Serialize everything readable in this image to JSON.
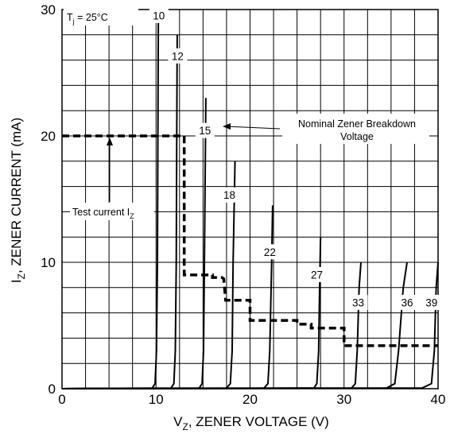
{
  "chart_data": {
    "type": "line",
    "title": "",
    "condition": {
      "prefix": "T",
      "sub": "j",
      "suffix": " = 25°C"
    },
    "xlabel": {
      "prefix": "V",
      "sub": "Z",
      "suffix": ", ZENER VOLTAGE (V)"
    },
    "ylabel": {
      "prefix": "I",
      "sub": "Z",
      "suffix": ", ZENER CURRENT (mA)"
    },
    "xlim": [
      0,
      40
    ],
    "ylim": [
      0,
      30
    ],
    "x_ticks": [
      0,
      10,
      20,
      30,
      40
    ],
    "y_ticks": [
      0,
      10,
      20,
      30
    ],
    "grid": true,
    "x_minor_step": 2.5,
    "y_minor_step": 2,
    "series": [
      {
        "name": "10",
        "label_at": [
          10.3,
          29.5
        ],
        "points": [
          [
            0,
            0
          ],
          [
            9.6,
            0.05
          ],
          [
            9.9,
            0.4
          ],
          [
            10.05,
            3
          ],
          [
            10.15,
            10
          ],
          [
            10.2,
            20
          ],
          [
            10.25,
            30
          ]
        ]
      },
      {
        "name": "12",
        "label_at": [
          12.3,
          26.3
        ],
        "points": [
          [
            0,
            0
          ],
          [
            11.6,
            0.05
          ],
          [
            11.9,
            0.4
          ],
          [
            12.05,
            3
          ],
          [
            12.15,
            10
          ],
          [
            12.2,
            20
          ],
          [
            12.25,
            28
          ]
        ]
      },
      {
        "name": "15",
        "label_at": [
          15.2,
          20.4
        ],
        "points": [
          [
            0,
            0
          ],
          [
            14.6,
            0.05
          ],
          [
            14.9,
            0.4
          ],
          [
            15.05,
            3
          ],
          [
            15.15,
            10
          ],
          [
            15.3,
            23
          ]
        ]
      },
      {
        "name": "18",
        "label_at": [
          17.8,
          15.3
        ],
        "points": [
          [
            0,
            0
          ],
          [
            17.5,
            0.05
          ],
          [
            17.9,
            0.4
          ],
          [
            18.1,
            3
          ],
          [
            18.2,
            10
          ],
          [
            18.4,
            18
          ]
        ]
      },
      {
        "name": "22",
        "label_at": [
          22.1,
          10.8
        ],
        "points": [
          [
            0,
            0
          ],
          [
            21.5,
            0.05
          ],
          [
            21.9,
            0.4
          ],
          [
            22.1,
            3
          ],
          [
            22.3,
            10
          ],
          [
            22.4,
            14.5
          ]
        ]
      },
      {
        "name": "27",
        "label_at": [
          27.1,
          9.0
        ],
        "points": [
          [
            0,
            0
          ],
          [
            26.8,
            0.05
          ],
          [
            27.1,
            0.4
          ],
          [
            27.3,
            3
          ],
          [
            27.4,
            8
          ],
          [
            27.5,
            12
          ]
        ]
      },
      {
        "name": "33",
        "label_at": [
          31.5,
          6.8
        ],
        "points": [
          [
            0,
            0
          ],
          [
            30.8,
            0.05
          ],
          [
            31.2,
            0.4
          ],
          [
            31.4,
            3
          ],
          [
            31.6,
            8
          ],
          [
            31.8,
            10
          ]
        ]
      },
      {
        "name": "36",
        "label_at": [
          36.7,
          6.8
        ],
        "points": [
          [
            0,
            0
          ],
          [
            34.5,
            0.05
          ],
          [
            35.4,
            0.4
          ],
          [
            35.8,
            3
          ],
          [
            36.3,
            8
          ],
          [
            36.7,
            10
          ]
        ]
      },
      {
        "name": "39",
        "label_at": [
          39.3,
          6.8
        ],
        "points": [
          [
            0,
            0
          ],
          [
            38.3,
            0.05
          ],
          [
            39.3,
            0.4
          ],
          [
            39.6,
            3
          ],
          [
            39.8,
            8
          ],
          [
            40,
            10
          ]
        ]
      }
    ],
    "test_current_line": [
      [
        0,
        20
      ],
      [
        13,
        20
      ],
      [
        13,
        9
      ],
      [
        16,
        9
      ],
      [
        16,
        8.8
      ],
      [
        17,
        8.8
      ],
      [
        17.2,
        8.7
      ],
      [
        17.4,
        7
      ],
      [
        20,
        7
      ],
      [
        20,
        5.4
      ],
      [
        25,
        5.4
      ],
      [
        25,
        5.1
      ],
      [
        26.5,
        5.1
      ],
      [
        26.5,
        4.8
      ],
      [
        30,
        4.8
      ],
      [
        30,
        3.4
      ],
      [
        40,
        3.4
      ]
    ],
    "annotations": {
      "nominal_line1": "Nominal Zener Breakdown",
      "nominal_line2": "Voltage",
      "test_current": {
        "prefix": "Test current I",
        "sub": "Z"
      }
    }
  }
}
